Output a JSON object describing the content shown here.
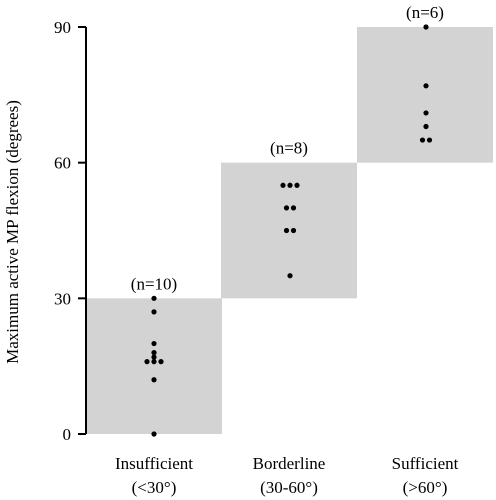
{
  "chart_data": {
    "type": "scatter",
    "ylabel": "Maximum active MP flexion (degrees)",
    "ylim": [
      0,
      90
    ],
    "yticks": [
      "0",
      "30",
      "60",
      "90"
    ],
    "grid": false,
    "colors": {
      "band": "#d3d3d3",
      "points": "#000000",
      "axis": "#000000"
    },
    "categories": [
      {
        "name": "Insufficient",
        "range_label": "(<30°)",
        "count_label": "(n=10)",
        "band": [
          0,
          30
        ],
        "values": [
          30,
          27,
          20,
          18,
          17,
          16,
          16,
          16,
          12,
          0
        ]
      },
      {
        "name": "Borderline",
        "range_label": "(30-60°)",
        "count_label": "(n=8)",
        "band": [
          30,
          60
        ],
        "values": [
          55,
          55,
          55,
          50,
          50,
          45,
          45,
          35
        ]
      },
      {
        "name": "Sufficient",
        "range_label": "(>60°)",
        "count_label": "(n=6)",
        "band": [
          60,
          90
        ],
        "values": [
          90,
          77,
          71,
          68,
          65,
          65
        ]
      }
    ]
  }
}
